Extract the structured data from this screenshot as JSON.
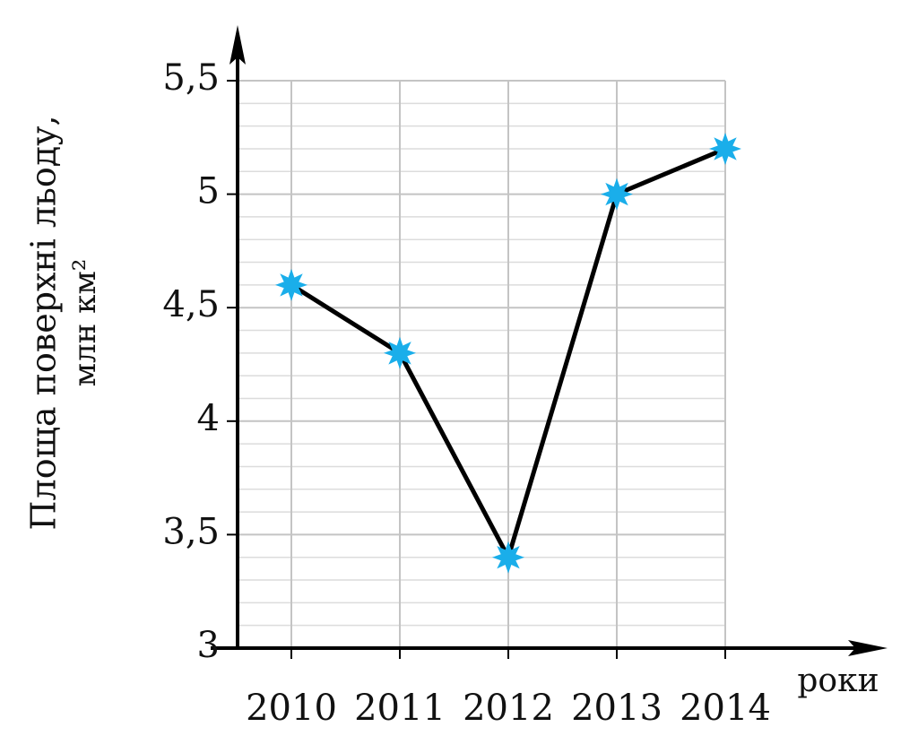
{
  "chart_data": {
    "type": "line",
    "y_label": [
      "Площа поверхні льоду,",
      "млн км²"
    ],
    "x_label": "роки",
    "categories": [
      "2010",
      "2011",
      "2012",
      "2013",
      "2014"
    ],
    "series": [
      {
        "color": "#1aaeea",
        "values": [
          4.6,
          4.3,
          3.4,
          5.0,
          5.2
        ]
      }
    ],
    "ylim": [
      3,
      5.5
    ],
    "yticks": [
      3,
      {
        "value": 3.5,
        "label": "3,5"
      },
      4,
      {
        "value": 4.5,
        "label": "4,5"
      },
      5,
      {
        "value": 5.5,
        "label": "5,5"
      }
    ],
    "grid": true
  }
}
